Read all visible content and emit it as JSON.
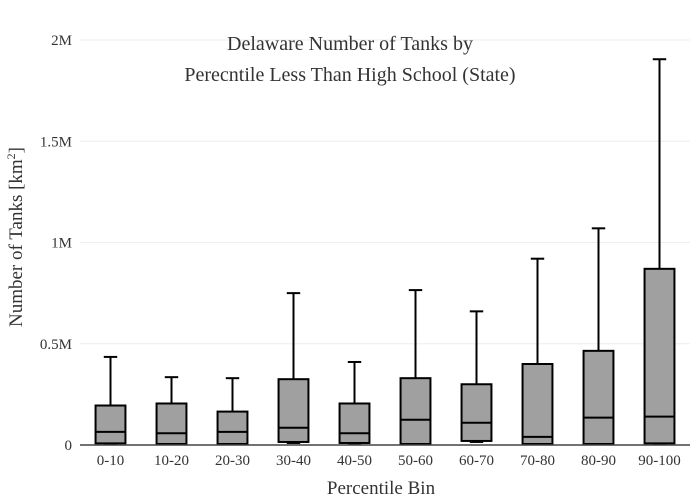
{
  "chart_data": {
    "type": "box",
    "title_line1": "Delaware Number of Tanks by",
    "title_line2": "Perecntile Less Than High School (State)",
    "xlabel": "Percentile Bin",
    "ylabel_main": "Number of Tanks  [km",
    "ylabel_sup": "2",
    "ylabel_end": "]",
    "ylim": [
      0,
      2000000
    ],
    "yticks": [
      {
        "value": 0,
        "label": "0"
      },
      {
        "value": 500000,
        "label": "0.5M"
      },
      {
        "value": 1000000,
        "label": "1M"
      },
      {
        "value": 1500000,
        "label": "1.5M"
      },
      {
        "value": 2000000,
        "label": "2M"
      }
    ],
    "grid": true,
    "box_color": "#a0a0a0",
    "categories": [
      "0-10",
      "10-20",
      "20-30",
      "30-40",
      "40-50",
      "50-60",
      "60-70",
      "70-80",
      "80-90",
      "90-100"
    ],
    "boxes": [
      {
        "min": 5000,
        "q1": 8000,
        "median": 65000,
        "q3": 195000,
        "max": 435000
      },
      {
        "min": 3000,
        "q1": 5000,
        "median": 58000,
        "q3": 205000,
        "max": 335000
      },
      {
        "min": 3000,
        "q1": 5000,
        "median": 65000,
        "q3": 165000,
        "max": 330000
      },
      {
        "min": 10000,
        "q1": 15000,
        "median": 85000,
        "q3": 325000,
        "max": 750000
      },
      {
        "min": 8000,
        "q1": 10000,
        "median": 58000,
        "q3": 205000,
        "max": 410000
      },
      {
        "min": 3000,
        "q1": 5000,
        "median": 125000,
        "q3": 330000,
        "max": 765000
      },
      {
        "min": 15000,
        "q1": 20000,
        "median": 110000,
        "q3": 300000,
        "max": 660000
      },
      {
        "min": 3000,
        "q1": 5000,
        "median": 40000,
        "q3": 400000,
        "max": 920000
      },
      {
        "min": 3000,
        "q1": 5000,
        "median": 135000,
        "q3": 465000,
        "max": 1070000
      },
      {
        "min": 5000,
        "q1": 8000,
        "median": 140000,
        "q3": 870000,
        "max": 1905000
      }
    ]
  }
}
